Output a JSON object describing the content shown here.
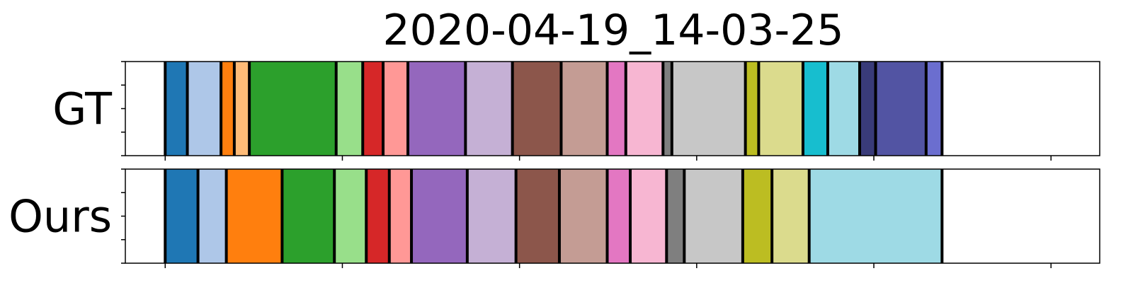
{
  "chart_data": {
    "type": "bar",
    "title": "2020-04-19_14-03-25",
    "xlabel": "",
    "ylabel": "",
    "xlim": [
      0,
      1100
    ],
    "ylim": [
      0,
      1
    ],
    "grid": false,
    "legend": "none",
    "x_tick_labels": [],
    "y_tick_labels": [],
    "rows": [
      {
        "label": "GT",
        "segments": [
          {
            "start": 45,
            "end": 70,
            "color": "#1f77b4"
          },
          {
            "start": 70,
            "end": 108,
            "color": "#aec7e8"
          },
          {
            "start": 108,
            "end": 123,
            "color": "#ff7f0e"
          },
          {
            "start": 123,
            "end": 140,
            "color": "#ffbb78"
          },
          {
            "start": 140,
            "end": 238,
            "color": "#2ca02c"
          },
          {
            "start": 238,
            "end": 268,
            "color": "#98df8a"
          },
          {
            "start": 268,
            "end": 291,
            "color": "#d62728"
          },
          {
            "start": 291,
            "end": 319,
            "color": "#ff9896"
          },
          {
            "start": 319,
            "end": 384,
            "color": "#9467bd"
          },
          {
            "start": 384,
            "end": 437,
            "color": "#c5b0d5"
          },
          {
            "start": 437,
            "end": 492,
            "color": "#8c564b"
          },
          {
            "start": 492,
            "end": 544,
            "color": "#c49c94"
          },
          {
            "start": 544,
            "end": 565,
            "color": "#e377c2"
          },
          {
            "start": 565,
            "end": 607,
            "color": "#f7b6d2"
          },
          {
            "start": 607,
            "end": 617,
            "color": "#7f7f7f"
          },
          {
            "start": 617,
            "end": 700,
            "color": "#c7c7c7"
          },
          {
            "start": 700,
            "end": 715,
            "color": "#bcbd22"
          },
          {
            "start": 715,
            "end": 765,
            "color": "#dbdb8d"
          },
          {
            "start": 765,
            "end": 793,
            "color": "#17becf"
          },
          {
            "start": 793,
            "end": 829,
            "color": "#9edae5"
          },
          {
            "start": 829,
            "end": 847,
            "color": "#393b79"
          },
          {
            "start": 847,
            "end": 904,
            "color": "#5254a3"
          },
          {
            "start": 904,
            "end": 922,
            "color": "#6b6ecf"
          }
        ]
      },
      {
        "label": "Ours",
        "segments": [
          {
            "start": 45,
            "end": 82,
            "color": "#1f77b4"
          },
          {
            "start": 82,
            "end": 114,
            "color": "#aec7e8"
          },
          {
            "start": 114,
            "end": 177,
            "color": "#ff7f0e"
          },
          {
            "start": 177,
            "end": 236,
            "color": "#2ca02c"
          },
          {
            "start": 236,
            "end": 272,
            "color": "#98df8a"
          },
          {
            "start": 272,
            "end": 298,
            "color": "#d62728"
          },
          {
            "start": 298,
            "end": 323,
            "color": "#ff9896"
          },
          {
            "start": 323,
            "end": 386,
            "color": "#9467bd"
          },
          {
            "start": 386,
            "end": 441,
            "color": "#c5b0d5"
          },
          {
            "start": 441,
            "end": 490,
            "color": "#8c564b"
          },
          {
            "start": 490,
            "end": 544,
            "color": "#c49c94"
          },
          {
            "start": 544,
            "end": 570,
            "color": "#e377c2"
          },
          {
            "start": 570,
            "end": 611,
            "color": "#f7b6d2"
          },
          {
            "start": 611,
            "end": 631,
            "color": "#7f7f7f"
          },
          {
            "start": 631,
            "end": 697,
            "color": "#c7c7c7"
          },
          {
            "start": 697,
            "end": 730,
            "color": "#bcbd22"
          },
          {
            "start": 730,
            "end": 772,
            "color": "#dbdb8d"
          },
          {
            "start": 772,
            "end": 922,
            "color": "#9edae5"
          }
        ]
      }
    ]
  }
}
